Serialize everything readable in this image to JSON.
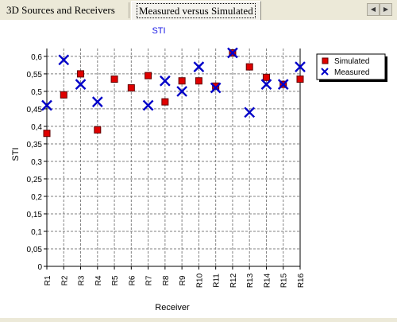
{
  "tabs": [
    {
      "label": "3D Sources and Receivers",
      "active": false
    },
    {
      "label": "Measured versus Simulated",
      "active": true
    }
  ],
  "scroll_icons": [
    "left-arrow-icon",
    "right-arrow-icon"
  ],
  "chart_data": {
    "type": "scatter",
    "title": "STI",
    "xlabel": "Receiver",
    "ylabel": "STI",
    "categories": [
      "R1",
      "R2",
      "R3",
      "R4",
      "R5",
      "R6",
      "R7",
      "R8",
      "R9",
      "R10",
      "R11",
      "R12",
      "R13",
      "R14",
      "R15",
      "R16"
    ],
    "ylim": [
      0,
      0.6
    ],
    "yticks": [
      "0",
      "0,05",
      "0,1",
      "0,15",
      "0,2",
      "0,25",
      "0,3",
      "0,35",
      "0,4",
      "0,45",
      "0,5",
      "0,55",
      "0,6"
    ],
    "ytick_values": [
      0,
      0.05,
      0.1,
      0.15,
      0.2,
      0.25,
      0.3,
      0.35,
      0.4,
      0.45,
      0.5,
      0.55,
      0.6
    ],
    "grid": true,
    "legend_position": "top-right",
    "series": [
      {
        "name": "Simulated",
        "marker": "square",
        "color": "#e00000",
        "values": [
          0.38,
          0.49,
          0.55,
          0.39,
          0.535,
          0.51,
          0.545,
          0.47,
          0.53,
          0.53,
          0.515,
          0.61,
          0.57,
          0.54,
          0.52,
          0.535
        ]
      },
      {
        "name": "Measured",
        "marker": "x",
        "color": "#0000c8",
        "values": [
          0.46,
          0.59,
          0.52,
          0.47,
          null,
          null,
          0.46,
          0.53,
          0.5,
          0.57,
          0.51,
          0.61,
          0.44,
          0.52,
          0.52,
          0.57
        ]
      }
    ]
  }
}
